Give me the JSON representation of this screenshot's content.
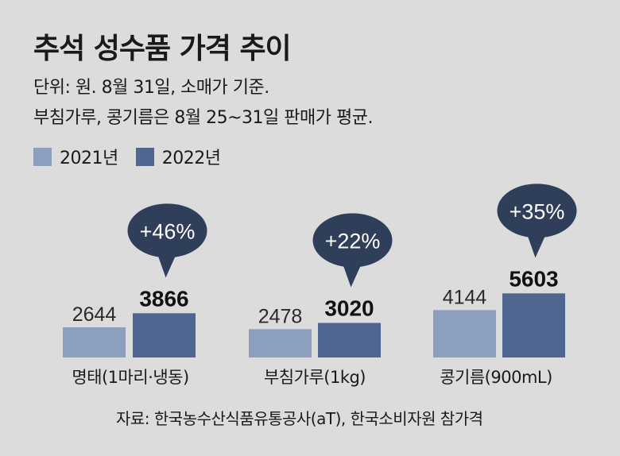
{
  "header": {
    "title": "추석 성수품 가격 추이",
    "unit_note": "단위: 원. 8월 31일, 소매가 기준.",
    "method_note": "부침가루, 콩기름은 8월 25~31일 판매가 평균."
  },
  "source": "자료: 한국농수산식품유통공사(aT), 한국소비자원 참가격",
  "colors": {
    "y2021": "#8c9fbe",
    "y2022": "#4e6690",
    "bubble": "#2f3f59",
    "background": "#dcdcdc"
  },
  "chart_data": {
    "type": "bar",
    "categories": [
      "명태(1마리·냉동)",
      "부침가루(1kg)",
      "콩기름(900mL)"
    ],
    "series": [
      {
        "name": "2021년",
        "values": [
          2644,
          2478,
          4144
        ]
      },
      {
        "name": "2022년",
        "values": [
          3866,
          3020,
          5603
        ]
      }
    ],
    "value_labels": {
      "2021년": [
        "2644",
        "2478",
        "4144"
      ],
      "2022년": [
        "3866",
        "3020",
        "5603"
      ]
    },
    "annotations": [
      "+46%",
      "+22%",
      "+35%"
    ],
    "legend_position": "top-left",
    "grid": false
  }
}
